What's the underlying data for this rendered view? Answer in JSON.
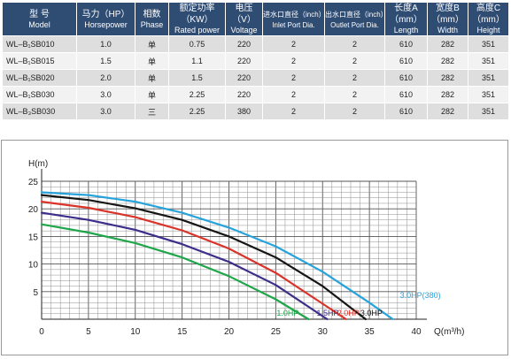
{
  "table": {
    "headers": [
      {
        "zh": "型 号",
        "en": "Model"
      },
      {
        "zh": "马力（HP）",
        "en": "Horsepower"
      },
      {
        "zh": "相数",
        "en": "Phase"
      },
      {
        "zh": "额定功率（KW）",
        "en": "Rated power"
      },
      {
        "zh": "电压（V）",
        "en": "Voltage"
      },
      {
        "zh": "进水口直径（inch）",
        "en": "Inlet Port Dia."
      },
      {
        "zh": "出水口直径（inch）",
        "en": "Outlet Port Dia."
      },
      {
        "zh": "长度A（mm）",
        "en": "Length"
      },
      {
        "zh": "宽度B（mm）",
        "en": "Width"
      },
      {
        "zh": "高度C（mm）",
        "en": "Height"
      }
    ],
    "rows": [
      [
        "WL–B₁SB010",
        "1.0",
        "单",
        "0.75",
        "220",
        "2",
        "2",
        "610",
        "282",
        "351"
      ],
      [
        "WL–B₁SB015",
        "1.5",
        "单",
        "1.1",
        "220",
        "2",
        "2",
        "610",
        "282",
        "351"
      ],
      [
        "WL–B₁SB020",
        "2.0",
        "单",
        "1.5",
        "220",
        "2",
        "2",
        "610",
        "282",
        "351"
      ],
      [
        "WL–B₁SB030",
        "3.0",
        "单",
        "2.25",
        "220",
        "2",
        "2",
        "610",
        "282",
        "351"
      ],
      [
        "WL–B₃SB030",
        "3.0",
        "三",
        "2.25",
        "380",
        "2",
        "2",
        "610",
        "282",
        "351"
      ]
    ]
  },
  "chart_data": {
    "type": "line",
    "title": "",
    "ylabel": "H(m)",
    "xlabel": "Q(m³/h)",
    "xlim": [
      0,
      40
    ],
    "ylim": [
      0,
      25
    ],
    "x_ticks": [
      0,
      5,
      10,
      15,
      20,
      25,
      30,
      35,
      40
    ],
    "y_ticks": [
      5,
      10,
      15,
      20,
      25
    ],
    "grid": true,
    "series": [
      {
        "name": "1.0HP",
        "color": "#1fa64a",
        "label_color": "#1fa64a",
        "x": [
          0,
          5,
          10,
          15,
          20,
          25,
          28.5
        ],
        "y": [
          17.2,
          15.7,
          13.8,
          11.2,
          7.8,
          3.6,
          0
        ]
      },
      {
        "name": "1.5HP",
        "color": "#3c2d8a",
        "label_color": "#3c2d8a",
        "x": [
          0,
          5,
          10,
          15,
          20,
          25,
          30.5
        ],
        "y": [
          19.3,
          18.0,
          16.2,
          13.6,
          10.4,
          6.2,
          0
        ]
      },
      {
        "name": "2.0HP",
        "color": "#d9332a",
        "label_color": "#d9332a",
        "x": [
          0,
          5,
          10,
          15,
          20,
          25,
          30,
          32.5
        ],
        "y": [
          21.3,
          20.2,
          18.5,
          16.1,
          12.8,
          8.4,
          2.8,
          0
        ]
      },
      {
        "name": "3.0HP",
        "color": "#151515",
        "label_color": "#151515",
        "x": [
          0,
          5,
          10,
          15,
          20,
          25,
          30,
          34.6
        ],
        "y": [
          22.5,
          21.6,
          20.1,
          18.0,
          15.0,
          11.2,
          6.0,
          0
        ]
      },
      {
        "name": "3.0HP(380)",
        "color": "#27a3dc",
        "label_color": "#27a3dc",
        "x": [
          0,
          5,
          10,
          15,
          20,
          25,
          30,
          35,
          37.5
        ],
        "y": [
          23.0,
          22.5,
          21.3,
          19.3,
          16.6,
          13.2,
          8.6,
          3.0,
          0
        ]
      }
    ]
  }
}
